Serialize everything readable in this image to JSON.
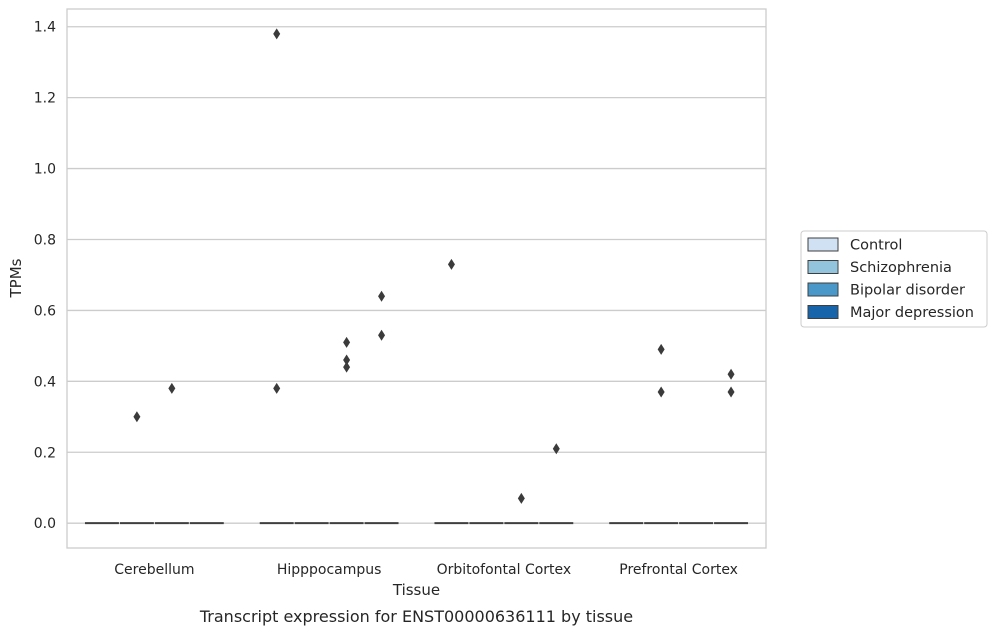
{
  "chart_data": {
    "type": "box",
    "xlabel": "Tissue",
    "ylabel": "TPMs",
    "caption": "Transcript expression for ENST00000636111 by tissue",
    "categories": [
      "Cerebellum",
      "Hipppocampus",
      "Orbitofontal Cortex",
      "Prefrontal Cortex"
    ],
    "ylim": [
      -0.07,
      1.45
    ],
    "yticks": [
      "0.0",
      "0.2",
      "0.4",
      "0.6",
      "0.8",
      "1.0",
      "1.2",
      "1.4"
    ],
    "grid": true,
    "legend_position": "right",
    "series": [
      {
        "name": "Control",
        "color": "#cfe1f2",
        "median": [
          0,
          0,
          0,
          0
        ],
        "outliers": [
          [],
          [
            1.38,
            0.38
          ],
          [
            0.73
          ],
          []
        ]
      },
      {
        "name": "Schizophrenia",
        "color": "#93c4de",
        "median": [
          0,
          0,
          0,
          0
        ],
        "outliers": [
          [
            0.3
          ],
          [],
          [],
          [
            0.49,
            0.37
          ]
        ]
      },
      {
        "name": "Bipolar disorder",
        "color": "#4a98c9",
        "median": [
          0,
          0,
          0,
          0
        ],
        "outliers": [
          [
            0.38
          ],
          [
            0.51,
            0.46,
            0.44
          ],
          [
            0.07
          ],
          []
        ]
      },
      {
        "name": "Major depression",
        "color": "#1764ab",
        "median": [
          0,
          0,
          0,
          0
        ],
        "outliers": [
          [],
          [
            0.64,
            0.53
          ],
          [
            0.21
          ],
          [
            0.42,
            0.37
          ]
        ]
      }
    ]
  }
}
